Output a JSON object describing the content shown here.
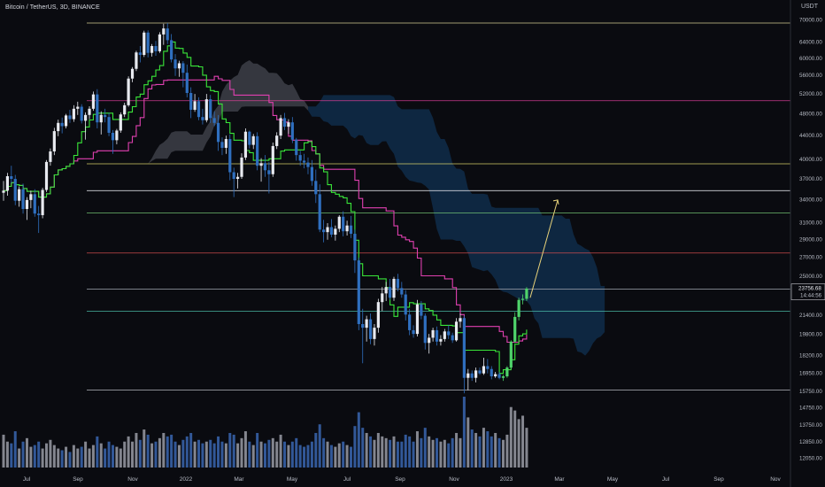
{
  "header": {
    "symbol_title": "Bitcoin / TetherUS, 3D, BINANCE",
    "price_unit": "USDT"
  },
  "colors": {
    "background": "#0a0b10",
    "candle_up": "#e8eaf0",
    "candle_down": "#2f6fbf",
    "candle_up_alt": "#4fd36b",
    "candle_down_alt": "#d879b8",
    "tenkan": "#39e639",
    "kijun": "#e040b0",
    "cloud_past": "#5a5d66",
    "cloud_future": "#0f2d4a",
    "arrow": "#e8d27a",
    "volume_up": "#9a9ca6",
    "volume_down": "#3a66b0"
  },
  "chart_data": {
    "type": "candlestick",
    "title": "Bitcoin / TetherUS, 3D, BINANCE",
    "y_scale": "log",
    "ylim": [
      12000,
      72000
    ],
    "y_ticks": [
      70000,
      64000,
      60000,
      56000,
      52000,
      48000,
      44000,
      40000,
      37000,
      34000,
      31000,
      29000,
      27000,
      25000,
      23000,
      21400,
      19800,
      18200,
      16950,
      15750,
      14750,
      13750,
      12850,
      12050
    ],
    "x_ticks": [
      "Jul",
      "Sep",
      "Nov",
      "2022",
      "Mar",
      "May",
      "Jul",
      "Sep",
      "Nov",
      "2023",
      "Mar",
      "May",
      "Jul",
      "Sep",
      "Nov"
    ],
    "current_price_label": "23756.68",
    "countdown_label": "14:44:56",
    "horizontal_levels": [
      {
        "price": 69000,
        "color": "#e8e0a0"
      },
      {
        "price": 50500,
        "color": "#e0409a"
      },
      {
        "price": 39200,
        "color": "#e8e070"
      },
      {
        "price": 35200,
        "color": "#e8eaf0"
      },
      {
        "price": 32200,
        "color": "#7ad07a"
      },
      {
        "price": 27400,
        "color": "#e05050"
      },
      {
        "price": 23700,
        "color": "#9aa0aa"
      },
      {
        "price": 21700,
        "color": "#50c8b0"
      },
      {
        "price": 15800,
        "color": "#c8cad0"
      }
    ],
    "projection_arrow": {
      "from_price": 22900,
      "to_price": 33900
    },
    "candles": [
      [
        34900,
        36600,
        33800,
        35200
      ],
      [
        35200,
        37800,
        34500,
        37300
      ],
      [
        37300,
        38900,
        36300,
        36900
      ],
      [
        36900,
        37500,
        33200,
        33800
      ],
      [
        33800,
        35800,
        33000,
        35400
      ],
      [
        35400,
        36200,
        32100,
        32700
      ],
      [
        32700,
        34300,
        31300,
        33900
      ],
      [
        33900,
        35200,
        32800,
        34700
      ],
      [
        34700,
        35400,
        31700,
        32100
      ],
      [
        32100,
        33100,
        29700,
        31900
      ],
      [
        31900,
        35600,
        31500,
        35300
      ],
      [
        35300,
        39800,
        35000,
        39500
      ],
      [
        39500,
        41700,
        38900,
        41200
      ],
      [
        41200,
        45300,
        40600,
        44700
      ],
      [
        44700,
        46800,
        43800,
        46200
      ],
      [
        46200,
        47200,
        44300,
        45600
      ],
      [
        45600,
        47900,
        45200,
        47600
      ],
      [
        47600,
        48700,
        46200,
        46900
      ],
      [
        46900,
        49600,
        46400,
        48900
      ],
      [
        48900,
        50300,
        47700,
        49300
      ],
      [
        49300,
        49800,
        46100,
        46600
      ],
      [
        46600,
        48200,
        43200,
        47700
      ],
      [
        47700,
        49400,
        46900,
        48900
      ],
      [
        48900,
        52400,
        48500,
        51800
      ],
      [
        51800,
        52900,
        45200,
        46300
      ],
      [
        46300,
        48400,
        44100,
        47700
      ],
      [
        47700,
        48900,
        46300,
        47300
      ],
      [
        47300,
        48100,
        43800,
        44400
      ],
      [
        44400,
        44900,
        40800,
        43100
      ],
      [
        43100,
        45100,
        42400,
        44800
      ],
      [
        44800,
        48200,
        44400,
        47800
      ],
      [
        47800,
        50100,
        47300,
        49600
      ],
      [
        49600,
        55700,
        49300,
        55200
      ],
      [
        55200,
        57800,
        54400,
        57400
      ],
      [
        57400,
        61700,
        56900,
        61300
      ],
      [
        61300,
        62900,
        58900,
        60700
      ],
      [
        60700,
        66900,
        60200,
        66400
      ],
      [
        66400,
        67000,
        60100,
        61200
      ],
      [
        61200,
        63400,
        60300,
        62900
      ],
      [
        62900,
        64200,
        60500,
        61600
      ],
      [
        61600,
        66500,
        61200,
        65900
      ],
      [
        65900,
        68800,
        63200,
        67500
      ],
      [
        67500,
        69000,
        63400,
        64400
      ],
      [
        64400,
        66000,
        58900,
        59600
      ],
      [
        59600,
        60900,
        55800,
        57500
      ],
      [
        57500,
        59300,
        55600,
        58700
      ],
      [
        58700,
        59200,
        53300,
        56500
      ],
      [
        56500,
        58400,
        51200,
        52100
      ],
      [
        52100,
        53300,
        47100,
        48700
      ],
      [
        48700,
        51900,
        48300,
        50400
      ],
      [
        50400,
        51200,
        46700,
        47300
      ],
      [
        47300,
        48900,
        45900,
        46700
      ],
      [
        46700,
        51900,
        46300,
        50800
      ],
      [
        50800,
        51700,
        46200,
        47100
      ],
      [
        47100,
        48400,
        45600,
        46200
      ],
      [
        46200,
        47700,
        41300,
        42800
      ],
      [
        42800,
        43600,
        40600,
        41800
      ],
      [
        41800,
        43900,
        40800,
        43300
      ],
      [
        43300,
        44100,
        36700,
        37900
      ],
      [
        37900,
        38600,
        34300,
        36900
      ],
      [
        36900,
        37800,
        35500,
        37200
      ],
      [
        37200,
        40900,
        36900,
        40200
      ],
      [
        40200,
        45200,
        39800,
        44600
      ],
      [
        44600,
        44800,
        41700,
        42300
      ],
      [
        42300,
        44200,
        41600,
        43800
      ],
      [
        43800,
        44500,
        38200,
        38900
      ],
      [
        38900,
        40100,
        36500,
        39300
      ],
      [
        39300,
        40600,
        37200,
        38200
      ],
      [
        38200,
        39500,
        34800,
        37600
      ],
      [
        37600,
        42700,
        37200,
        42100
      ],
      [
        42100,
        44500,
        41600,
        43900
      ],
      [
        43900,
        47700,
        43300,
        47100
      ],
      [
        47100,
        48100,
        44900,
        45500
      ],
      [
        45500,
        46900,
        44200,
        46300
      ],
      [
        46300,
        47300,
        42600,
        43200
      ],
      [
        43200,
        43500,
        39700,
        40600
      ],
      [
        40600,
        41300,
        38900,
        39700
      ],
      [
        39700,
        40800,
        38500,
        39400
      ],
      [
        39400,
        40200,
        37600,
        38700
      ],
      [
        38700,
        39800,
        35900,
        36600
      ],
      [
        36600,
        38300,
        33500,
        34700
      ],
      [
        34700,
        36100,
        29800,
        30100
      ],
      [
        30100,
        31300,
        28600,
        29800
      ],
      [
        29800,
        30900,
        28900,
        30400
      ],
      [
        30400,
        31400,
        29200,
        29500
      ],
      [
        29500,
        30600,
        28800,
        30200
      ],
      [
        30200,
        31900,
        29800,
        31700
      ],
      [
        31700,
        32400,
        29300,
        29900
      ],
      [
        29900,
        31200,
        29400,
        30600
      ],
      [
        30600,
        31800,
        29100,
        29600
      ],
      [
        29600,
        30100,
        25300,
        26600
      ],
      [
        26600,
        26900,
        20100,
        20600
      ],
      [
        20600,
        21900,
        17600,
        20300
      ],
      [
        20300,
        21300,
        19200,
        21000
      ],
      [
        21000,
        21500,
        19000,
        19400
      ],
      [
        19400,
        20600,
        18900,
        20300
      ],
      [
        20300,
        22800,
        19900,
        22500
      ],
      [
        22500,
        23900,
        21700,
        23300
      ],
      [
        23300,
        24400,
        22600,
        23900
      ],
      [
        23900,
        24700,
        22700,
        22900
      ],
      [
        22900,
        24900,
        22600,
        24700
      ],
      [
        24700,
        25200,
        23500,
        23800
      ],
      [
        23800,
        24400,
        22900,
        23200
      ],
      [
        23200,
        23600,
        20900,
        21400
      ],
      [
        21400,
        21900,
        19700,
        20100
      ],
      [
        20100,
        20500,
        19500,
        19800
      ],
      [
        19800,
        22700,
        19600,
        22300
      ],
      [
        22300,
        22600,
        21000,
        21300
      ],
      [
        21300,
        21500,
        18600,
        19100
      ],
      [
        19100,
        19800,
        18300,
        19500
      ],
      [
        19500,
        20300,
        19200,
        20100
      ],
      [
        20100,
        20400,
        18900,
        19200
      ],
      [
        19200,
        19700,
        18900,
        19400
      ],
      [
        19400,
        20200,
        19200,
        20000
      ],
      [
        20000,
        20500,
        19400,
        19700
      ],
      [
        19700,
        19900,
        19100,
        19300
      ],
      [
        19300,
        21100,
        19200,
        20800
      ],
      [
        20800,
        21500,
        20300,
        21100
      ],
      [
        21100,
        21300,
        15600,
        16600
      ],
      [
        16600,
        17200,
        15800,
        16900
      ],
      [
        16900,
        17100,
        16400,
        16600
      ],
      [
        16600,
        17300,
        16300,
        17100
      ],
      [
        17100,
        17300,
        16800,
        16900
      ],
      [
        16900,
        18000,
        16800,
        17400
      ],
      [
        17400,
        17900,
        16900,
        17200
      ],
      [
        17200,
        17400,
        16500,
        16700
      ],
      [
        16700,
        17000,
        16600,
        16850
      ],
      [
        16850,
        17000,
        16500,
        16600
      ],
      [
        16600,
        16800,
        16400,
        16700
      ],
      [
        16700,
        17400,
        16600,
        17300
      ],
      [
        17300,
        19300,
        17200,
        19200
      ],
      [
        19200,
        21600,
        19100,
        21200
      ],
      [
        21200,
        22900,
        20900,
        22700
      ],
      [
        22700,
        23200,
        22300,
        22800
      ],
      [
        22800,
        23900,
        22600,
        23757
      ]
    ],
    "volume": [
      38,
      30,
      28,
      42,
      22,
      30,
      34,
      24,
      26,
      30,
      22,
      28,
      32,
      26,
      22,
      20,
      24,
      18,
      26,
      22,
      24,
      30,
      22,
      26,
      36,
      28,
      22,
      30,
      26,
      24,
      22,
      30,
      36,
      30,
      40,
      32,
      44,
      38,
      28,
      30,
      34,
      40,
      36,
      38,
      30,
      26,
      32,
      36,
      40,
      30,
      32,
      28,
      30,
      32,
      28,
      36,
      30,
      28,
      40,
      38,
      28,
      34,
      42,
      30,
      26,
      40,
      30,
      28,
      32,
      34,
      30,
      38,
      30,
      26,
      30,
      34,
      26,
      24,
      26,
      30,
      40,
      50,
      34,
      30,
      26,
      24,
      28,
      30,
      26,
      24,
      48,
      64,
      46,
      40,
      36,
      32,
      40,
      36,
      34,
      32,
      36,
      30,
      30,
      38,
      36,
      30,
      42,
      34,
      46,
      36,
      32,
      34,
      30,
      32,
      28,
      34,
      40,
      34,
      82,
      58,
      44,
      40,
      36,
      46,
      42,
      36,
      40,
      34,
      32,
      38,
      70,
      66,
      56,
      60,
      46
    ]
  }
}
